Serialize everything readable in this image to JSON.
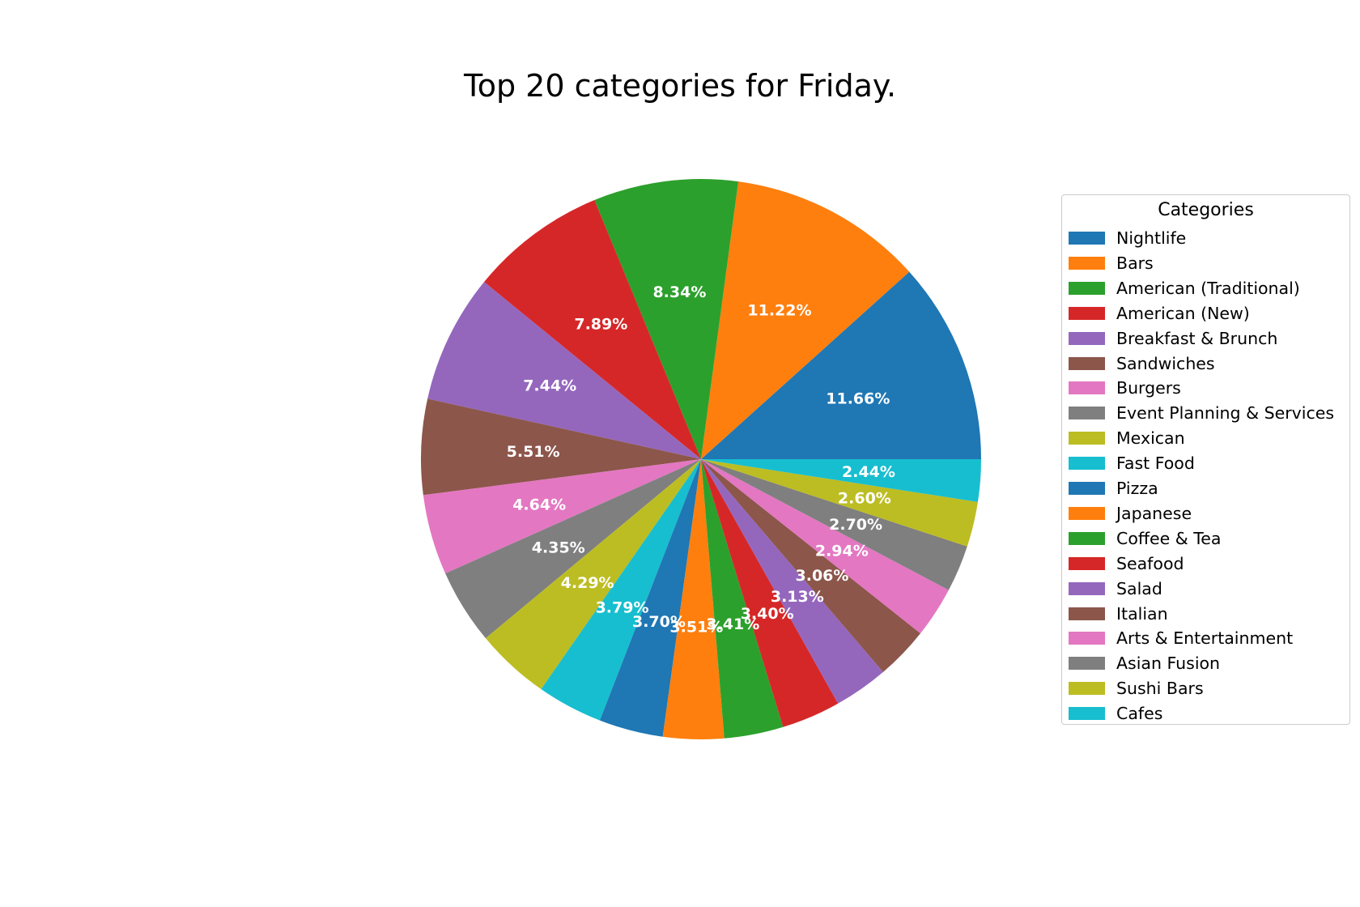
{
  "chart_data": {
    "type": "pie",
    "title": "Top 20 categories for Friday.",
    "legend_title": "Categories",
    "legend_position": "right",
    "start_angle_deg": 0,
    "direction": "counterclockwise",
    "label_color": "#ffffff",
    "slices": [
      {
        "label": "Nightlife",
        "value": 11.66,
        "pct_label": "11.66%",
        "color": "#1f77b4"
      },
      {
        "label": "Bars",
        "value": 11.22,
        "pct_label": "11.22%",
        "color": "#ff7f0e"
      },
      {
        "label": "American (Traditional)",
        "value": 8.34,
        "pct_label": "8.34%",
        "color": "#2ca02c"
      },
      {
        "label": "American (New)",
        "value": 7.89,
        "pct_label": "7.89%",
        "color": "#d62728"
      },
      {
        "label": "Breakfast & Brunch",
        "value": 7.44,
        "pct_label": "7.44%",
        "color": "#9467bd"
      },
      {
        "label": "Sandwiches",
        "value": 5.51,
        "pct_label": "5.51%",
        "color": "#8c564b"
      },
      {
        "label": "Burgers",
        "value": 4.64,
        "pct_label": "4.64%",
        "color": "#e377c2"
      },
      {
        "label": "Event Planning & Services",
        "value": 4.35,
        "pct_label": "4.35%",
        "color": "#7f7f7f"
      },
      {
        "label": "Mexican",
        "value": 4.29,
        "pct_label": "4.29%",
        "color": "#bcbd22"
      },
      {
        "label": "Fast Food",
        "value": 3.79,
        "pct_label": "3.79%",
        "color": "#17becf"
      },
      {
        "label": "Pizza",
        "value": 3.7,
        "pct_label": "3.70%",
        "color": "#1f77b4"
      },
      {
        "label": "Japanese",
        "value": 3.51,
        "pct_label": "3.51%",
        "color": "#ff7f0e"
      },
      {
        "label": "Coffee & Tea",
        "value": 3.41,
        "pct_label": "3.41%",
        "color": "#2ca02c"
      },
      {
        "label": "Seafood",
        "value": 3.4,
        "pct_label": "3.40%",
        "color": "#d62728"
      },
      {
        "label": "Salad",
        "value": 3.13,
        "pct_label": "3.13%",
        "color": "#9467bd"
      },
      {
        "label": "Italian",
        "value": 3.06,
        "pct_label": "3.06%",
        "color": "#8c564b"
      },
      {
        "label": "Arts & Entertainment",
        "value": 2.94,
        "pct_label": "2.94%",
        "color": "#e377c2"
      },
      {
        "label": "Asian Fusion",
        "value": 2.7,
        "pct_label": "2.70%",
        "color": "#7f7f7f"
      },
      {
        "label": "Sushi Bars",
        "value": 2.6,
        "pct_label": "2.60%",
        "color": "#bcbd22"
      },
      {
        "label": "Cafes",
        "value": 2.44,
        "pct_label": "2.44%",
        "color": "#17becf"
      }
    ]
  }
}
